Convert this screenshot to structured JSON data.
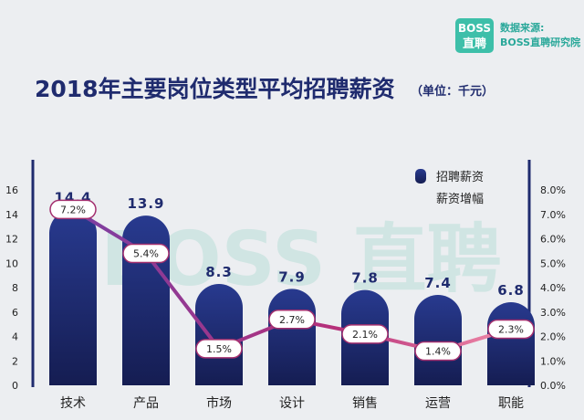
{
  "brand": {
    "logo_line1": "BOSS",
    "logo_line2": "直聘",
    "source_label": "数据来源:",
    "source_name": "BOSS直聘研究院",
    "watermark": "BOSS 直聘",
    "accent_color": "#3dbfa9"
  },
  "chart_data": {
    "type": "bar",
    "title": "2018年主要岗位类型平均招聘薪资",
    "unit_note": "（单位：千元）",
    "categories": [
      "技术",
      "产品",
      "市场",
      "设计",
      "销售",
      "运营",
      "职能"
    ],
    "series": [
      {
        "name": "招聘薪资",
        "type": "bar",
        "axis": "left",
        "values": [
          14.4,
          13.9,
          8.3,
          7.9,
          7.8,
          7.4,
          6.8
        ],
        "value_labels": [
          "14.4",
          "13.9",
          "8.3",
          "7.9",
          "7.8",
          "7.4",
          "6.8"
        ],
        "color": "#1f2b6e"
      },
      {
        "name": "薪资增幅",
        "type": "line",
        "axis": "right",
        "values": [
          7.2,
          5.4,
          1.5,
          2.7,
          2.1,
          1.4,
          2.3
        ],
        "value_labels": [
          "7.2%",
          "5.4%",
          "1.5%",
          "2.7%",
          "2.1%",
          "1.4%",
          "2.3%"
        ],
        "color": "#b6307a"
      }
    ],
    "y_left": {
      "ylim": [
        0,
        16
      ],
      "ticks": [
        "0",
        "2",
        "4",
        "6",
        "8",
        "10",
        "12",
        "14",
        "16"
      ]
    },
    "y_right": {
      "ylim": [
        0,
        8
      ],
      "ticks": [
        "0.0%",
        "1.0%",
        "2.0%",
        "3.0%",
        "4.0%",
        "5.0%",
        "6.0%",
        "7.0%",
        "8.0%"
      ]
    },
    "legend": {
      "position": "top-right",
      "entries": [
        "招聘薪资",
        "薪资增幅"
      ]
    },
    "grid": false
  }
}
